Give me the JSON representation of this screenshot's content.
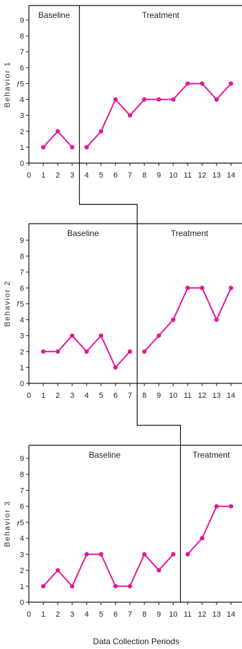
{
  "chart_data": [
    {
      "type": "line",
      "ylabel": "Behavior 1",
      "ylabel_f": "f",
      "phase_labels": [
        "Baseline",
        "Treatment"
      ],
      "phase_change_after": 3.5,
      "x": [
        1,
        2,
        3,
        4,
        5,
        6,
        7,
        8,
        9,
        10,
        11,
        12,
        13,
        14
      ],
      "values": [
        1,
        2,
        1,
        1,
        2,
        4,
        3,
        4,
        4,
        4,
        5,
        5,
        4,
        5
      ],
      "xlim": [
        0,
        14
      ],
      "ylim": [
        0,
        9
      ],
      "x_ticks": [
        "0",
        "1",
        "2",
        "3",
        "4",
        "5",
        "6",
        "7",
        "8",
        "9",
        "10",
        "11",
        "12",
        "13",
        "14"
      ],
      "y_ticks": [
        "0",
        "1",
        "2",
        "3",
        "4",
        "5",
        "6",
        "7",
        "8",
        "9"
      ],
      "color": "#e6169a"
    },
    {
      "type": "line",
      "ylabel": "Behavior 2",
      "ylabel_f": "f",
      "phase_labels": [
        "Baseline",
        "Treatment"
      ],
      "phase_change_after": 7.5,
      "x": [
        1,
        2,
        3,
        4,
        5,
        6,
        7,
        8,
        9,
        10,
        11,
        12,
        13,
        14
      ],
      "values": [
        2,
        2,
        3,
        2,
        3,
        1,
        2,
        2,
        3,
        4,
        6,
        6,
        4,
        6
      ],
      "xlim": [
        0,
        14
      ],
      "ylim": [
        0,
        9
      ],
      "x_ticks": [
        "0",
        "1",
        "2",
        "3",
        "4",
        "5",
        "6",
        "7",
        "8",
        "9",
        "10",
        "11",
        "12",
        "13",
        "14"
      ],
      "y_ticks": [
        "0",
        "1",
        "2",
        "3",
        "4",
        "5",
        "6",
        "7",
        "8",
        "9"
      ],
      "color": "#e6169a"
    },
    {
      "type": "line",
      "ylabel": "Behavior 3",
      "ylabel_f": "f",
      "phase_labels": [
        "Baseline",
        "Treatment"
      ],
      "phase_change_after": 10.5,
      "x": [
        1,
        2,
        3,
        4,
        5,
        6,
        7,
        8,
        9,
        10,
        11,
        12,
        13,
        14
      ],
      "values": [
        1,
        2,
        1,
        3,
        3,
        1,
        1,
        3,
        2,
        3,
        3,
        4,
        6,
        6
      ],
      "xlim": [
        0,
        14
      ],
      "ylim": [
        0,
        9
      ],
      "x_ticks": [
        "0",
        "1",
        "2",
        "3",
        "4",
        "5",
        "6",
        "7",
        "8",
        "9",
        "10",
        "11",
        "12",
        "13",
        "14"
      ],
      "y_ticks": [
        "0",
        "1",
        "2",
        "3",
        "4",
        "5",
        "6",
        "7",
        "8",
        "9"
      ],
      "color": "#e6169a"
    }
  ],
  "xlabel": "Data Collection Periods"
}
